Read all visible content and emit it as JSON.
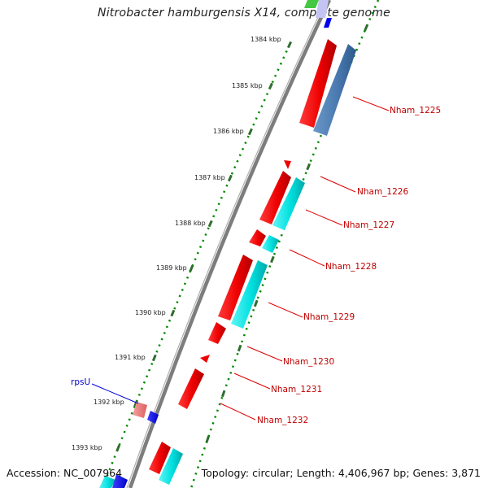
{
  "title": "Nitrobacter hamburgensis X14, complete genome",
  "footer": {
    "accession": "Accession: NC_007964",
    "summary": "Topology: circular; Length: 4,406,967 bp; Genes: 3,871"
  },
  "kbp_labels": [
    "1384 kbp",
    "1385 kbp",
    "1386 kbp",
    "1387 kbp",
    "1388 kbp",
    "1389 kbp",
    "1390 kbp",
    "1391 kbp",
    "1392 kbp",
    "1393 kbp"
  ],
  "gene_labels": [
    "Nham_1225",
    "Nham_1226",
    "Nham_1227",
    "Nham_1228",
    "Nham_1229",
    "Nham_1230",
    "Nham_1231",
    "Nham_1232"
  ],
  "rps_label": "rpsU",
  "colors": {
    "backbone": "#7d7d7d",
    "forward_cds": "#ff0000",
    "cds_blue": "#4a7ab0",
    "cds_cyan": "#00dede",
    "gene_blue": "#0000ff",
    "rna_pink": "#f08080",
    "gene_label": "#c00000",
    "rps_label": "#0000cc",
    "ticks_minor": "#008800",
    "ticks_major": "#2e6e2e"
  }
}
